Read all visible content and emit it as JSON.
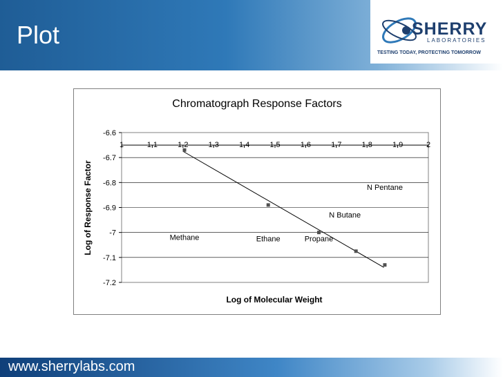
{
  "slide": {
    "title": "Plot"
  },
  "logo": {
    "name": "SHERRY",
    "sub": "LABORATORIES",
    "tagline": "TESTING TODAY, PROTECTING TOMORROW"
  },
  "footer": {
    "url": "www.sherrylabs.com"
  },
  "colors": {
    "header": "#2f79b8",
    "logo": "#1e3f6e",
    "marker": "#505050",
    "line": "#000000"
  },
  "chart_data": {
    "type": "scatter",
    "title": "Chromatograph Response Factors",
    "xlabel": "Log of Molecular Weight",
    "ylabel": "Log of Response Factor",
    "xlim": [
      1,
      2
    ],
    "ylim": [
      -7.2,
      -6.6
    ],
    "x_ticks": [
      "1",
      "1.1",
      "1.2",
      "1.3",
      "1.4",
      "1.5",
      "1.6",
      "1.7",
      "1.8",
      "1.9",
      "2"
    ],
    "y_ticks": [
      "-6.6",
      "-6.7",
      "-6.8",
      "-6.9",
      "-7",
      "-7.1",
      "-7.2"
    ],
    "grid": "horizontal",
    "series": [
      {
        "x": [
          1.205,
          1.478,
          1.643,
          1.764,
          1.858
        ],
        "y": [
          -6.67,
          -6.89,
          -7.0,
          -7.075,
          -7.13
        ]
      }
    ],
    "trendline": {
      "x": [
        1.2,
        1.855
      ],
      "y": [
        -6.675,
        -7.14
      ]
    },
    "annotations": [
      {
        "text": "Methane",
        "x": 1.205,
        "y": -7.03
      },
      {
        "text": "Ethane",
        "x": 1.478,
        "y": -7.035
      },
      {
        "text": "Propane",
        "x": 1.643,
        "y": -7.035
      },
      {
        "text": "N Butane",
        "x": 1.728,
        "y": -6.94
      },
      {
        "text": "N Pentane",
        "x": 1.858,
        "y": -6.83
      }
    ]
  }
}
